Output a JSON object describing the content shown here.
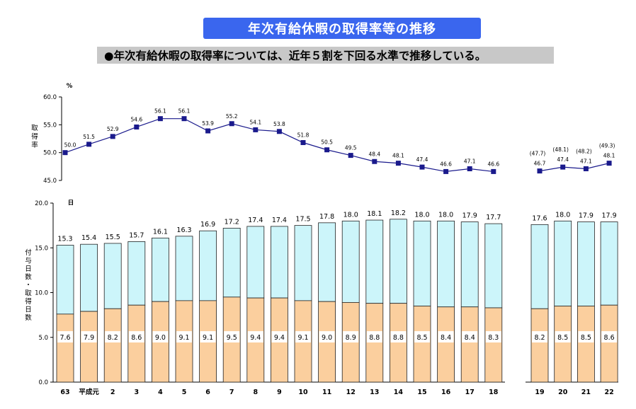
{
  "header": {
    "title": "年次有給休暇の取得率等の推移",
    "subtitle": "●年次有給休暇の取得率については、近年５割を下回る水準で推移している。"
  },
  "colors": {
    "title_bg": "#3a66ee",
    "line": "#1a1a8c",
    "marker": "#1a1a8c",
    "bar_top": "#ccf5fa",
    "bar_bottom": "#fbcf9e",
    "bar_stroke": "#222222"
  },
  "chart_data": [
    {
      "type": "line",
      "ylabel": "取得率",
      "yunit": "%",
      "ylim": [
        45.0,
        60.0
      ],
      "yticks": [
        "60.0",
        "55.0",
        "50.0",
        "45.0"
      ],
      "x": [
        "63",
        "平成元",
        "2",
        "3",
        "4",
        "5",
        "6",
        "7",
        "8",
        "9",
        "10",
        "11",
        "12",
        "13",
        "14",
        "15",
        "16",
        "17",
        "18",
        "19",
        "20",
        "21",
        "22"
      ],
      "segments": [
        {
          "values": [
            50.0,
            51.5,
            52.9,
            54.6,
            56.1,
            56.1,
            53.9,
            55.2,
            54.1,
            53.8,
            51.8,
            50.5,
            49.5,
            48.4,
            48.1,
            47.4,
            46.6,
            47.1,
            46.6
          ],
          "labels": [
            "50.0",
            "51.5",
            "52.9",
            "54.6",
            "56.1",
            "56.1",
            "53.9",
            "55.2",
            "54.1",
            "53.8",
            "51.8",
            "50.5",
            "49.5",
            "48.4",
            "48.1",
            "47.4",
            "46.6",
            "47.1",
            "46.6"
          ]
        },
        {
          "values": [
            46.7,
            47.4,
            47.1,
            48.1
          ],
          "labels": [
            "46.7",
            "47.4",
            "47.1",
            "48.1"
          ],
          "paren_labels": [
            "(47.7)",
            "(48.1)",
            "(48.2)",
            "(49.3)"
          ]
        }
      ]
    },
    {
      "type": "bar",
      "ylabel": "付与日数・取得日数",
      "yunit": "日",
      "ylim": [
        0.0,
        20.0
      ],
      "yticks": [
        "20.0",
        "15.0",
        "10.0",
        "5.0",
        "0.0"
      ],
      "categories": [
        "63",
        "平成元",
        "2",
        "3",
        "4",
        "5",
        "6",
        "7",
        "8",
        "9",
        "10",
        "11",
        "12",
        "13",
        "14",
        "15",
        "16",
        "17",
        "18",
        "19",
        "20",
        "21",
        "22"
      ],
      "series": [
        {
          "values": [
            15.3,
            15.4,
            15.5,
            15.7,
            16.1,
            16.3,
            16.9,
            17.2,
            17.4,
            17.4,
            17.5,
            17.8,
            18.0,
            18.1,
            18.2,
            18.0,
            18.0,
            17.9,
            17.7,
            17.6,
            18.0,
            17.9,
            17.9
          ],
          "labels": [
            "15.3",
            "15.4",
            "15.5",
            "15.7",
            "16.1",
            "16.3",
            "16.9",
            "17.2",
            "17.4",
            "17.4",
            "17.5",
            "17.8",
            "18.0",
            "18.1",
            "18.2",
            "18.0",
            "18.0",
            "17.9",
            "17.7",
            "17.6",
            "18.0",
            "17.9",
            "17.9"
          ]
        },
        {
          "values": [
            7.6,
            7.9,
            8.2,
            8.6,
            9.0,
            9.1,
            9.1,
            9.5,
            9.4,
            9.4,
            9.1,
            9.0,
            8.9,
            8.8,
            8.8,
            8.5,
            8.4,
            8.4,
            8.3,
            8.2,
            8.5,
            8.5,
            8.6
          ],
          "labels": [
            "7.6",
            "7.9",
            "8.2",
            "8.6",
            "9.0",
            "9.1",
            "9.1",
            "9.5",
            "9.4",
            "9.4",
            "9.1",
            "9.0",
            "8.9",
            "8.8",
            "8.8",
            "8.5",
            "8.4",
            "8.4",
            "8.3",
            "8.2",
            "8.5",
            "8.5",
            "8.6"
          ]
        }
      ]
    }
  ]
}
